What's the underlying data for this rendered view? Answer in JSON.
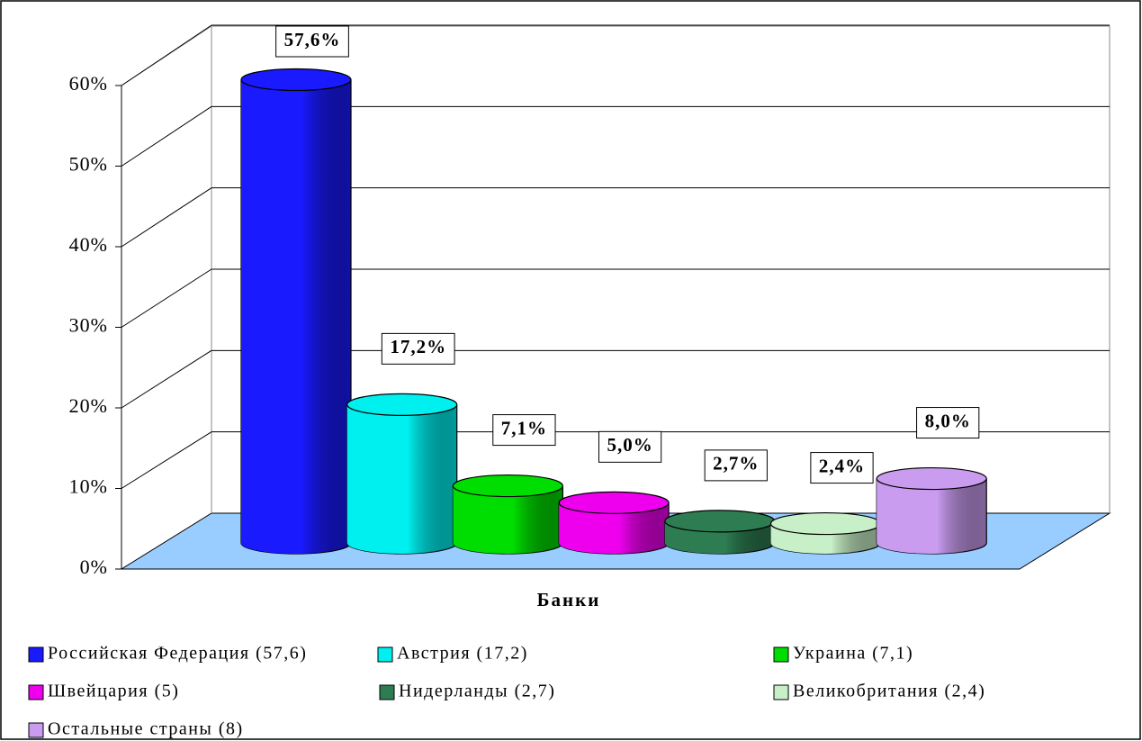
{
  "chart_data": {
    "type": "bar",
    "xlabel": "Банки",
    "ylim": [
      0,
      60
    ],
    "yticks": [
      {
        "value": 0,
        "label": "0%"
      },
      {
        "value": 10,
        "label": "10%"
      },
      {
        "value": 20,
        "label": "20%"
      },
      {
        "value": 30,
        "label": "30%"
      },
      {
        "value": 40,
        "label": "40%"
      },
      {
        "value": 50,
        "label": "50%"
      },
      {
        "value": 60,
        "label": "60%"
      }
    ],
    "grid": true,
    "series": [
      {
        "name": "Российская Федерация (57,6)",
        "color": "#1a1aff",
        "values": [
          57.6
        ],
        "value_labels": [
          "57,6%"
        ]
      },
      {
        "name": "Австрия (17,2)",
        "color": "#00f0f0",
        "values": [
          17.2
        ],
        "value_labels": [
          "17,2%"
        ]
      },
      {
        "name": "Украина (7,1)",
        "color": "#00dd00",
        "values": [
          7.1
        ],
        "value_labels": [
          "7,1%"
        ]
      },
      {
        "name": "Швейцария (5)",
        "color": "#ee00ee",
        "values": [
          5.0
        ],
        "value_labels": [
          "5,0%"
        ]
      },
      {
        "name": "Нидерланды (2,7)",
        "color": "#2e7d52",
        "values": [
          2.7
        ],
        "value_labels": [
          "2,7%"
        ]
      },
      {
        "name": "Великобритания (2,4)",
        "color": "#c8f0c8",
        "values": [
          2.4
        ],
        "value_labels": [
          "2,4%"
        ]
      },
      {
        "name": "Остальные страны (8)",
        "color": "#c99cf0",
        "values": [
          8.0
        ],
        "value_labels": [
          "8,0%"
        ]
      }
    ]
  }
}
